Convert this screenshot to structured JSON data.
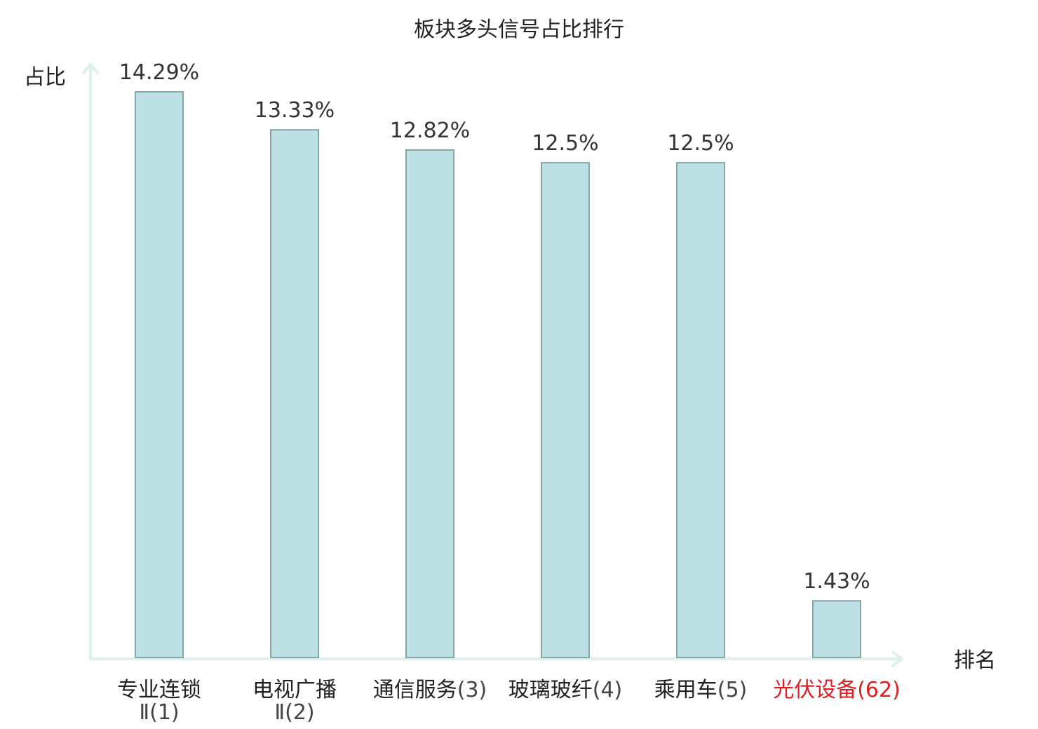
{
  "chart_data": {
    "type": "bar",
    "title": "板块多头信号占比排行",
    "ylabel": "占比",
    "xlabel": "排名",
    "ylim": [
      0,
      14.29
    ],
    "grid": false,
    "legend": "none",
    "categories": [
      {
        "name": "专业连锁",
        "rank_text": "Ⅱ(1)",
        "value": 14.29,
        "value_label": "14.29%",
        "highlight": false
      },
      {
        "name": "电视广播",
        "rank_text": "Ⅱ(2)",
        "value": 13.33,
        "value_label": "13.33%",
        "highlight": false
      },
      {
        "name": "通信服务",
        "rank_text": "(3)",
        "value": 12.82,
        "value_label": "12.82%",
        "highlight": false
      },
      {
        "name": "玻璃玻纤",
        "rank_text": "(4)",
        "value": 12.5,
        "value_label": "12.5%",
        "highlight": false
      },
      {
        "name": "乘用车",
        "rank_text": "(5)",
        "value": 12.5,
        "value_label": "12.5%",
        "highlight": false
      },
      {
        "name": "光伏设备",
        "rank_text": "(62)",
        "value": 1.43,
        "value_label": "1.43%",
        "highlight": true
      }
    ]
  },
  "colors": {
    "bar_fill": "#bce0e3",
    "bar_stroke": "#84a6a8",
    "axis": "#ddf1ee",
    "text": "#222222",
    "highlight": "#e02020"
  }
}
